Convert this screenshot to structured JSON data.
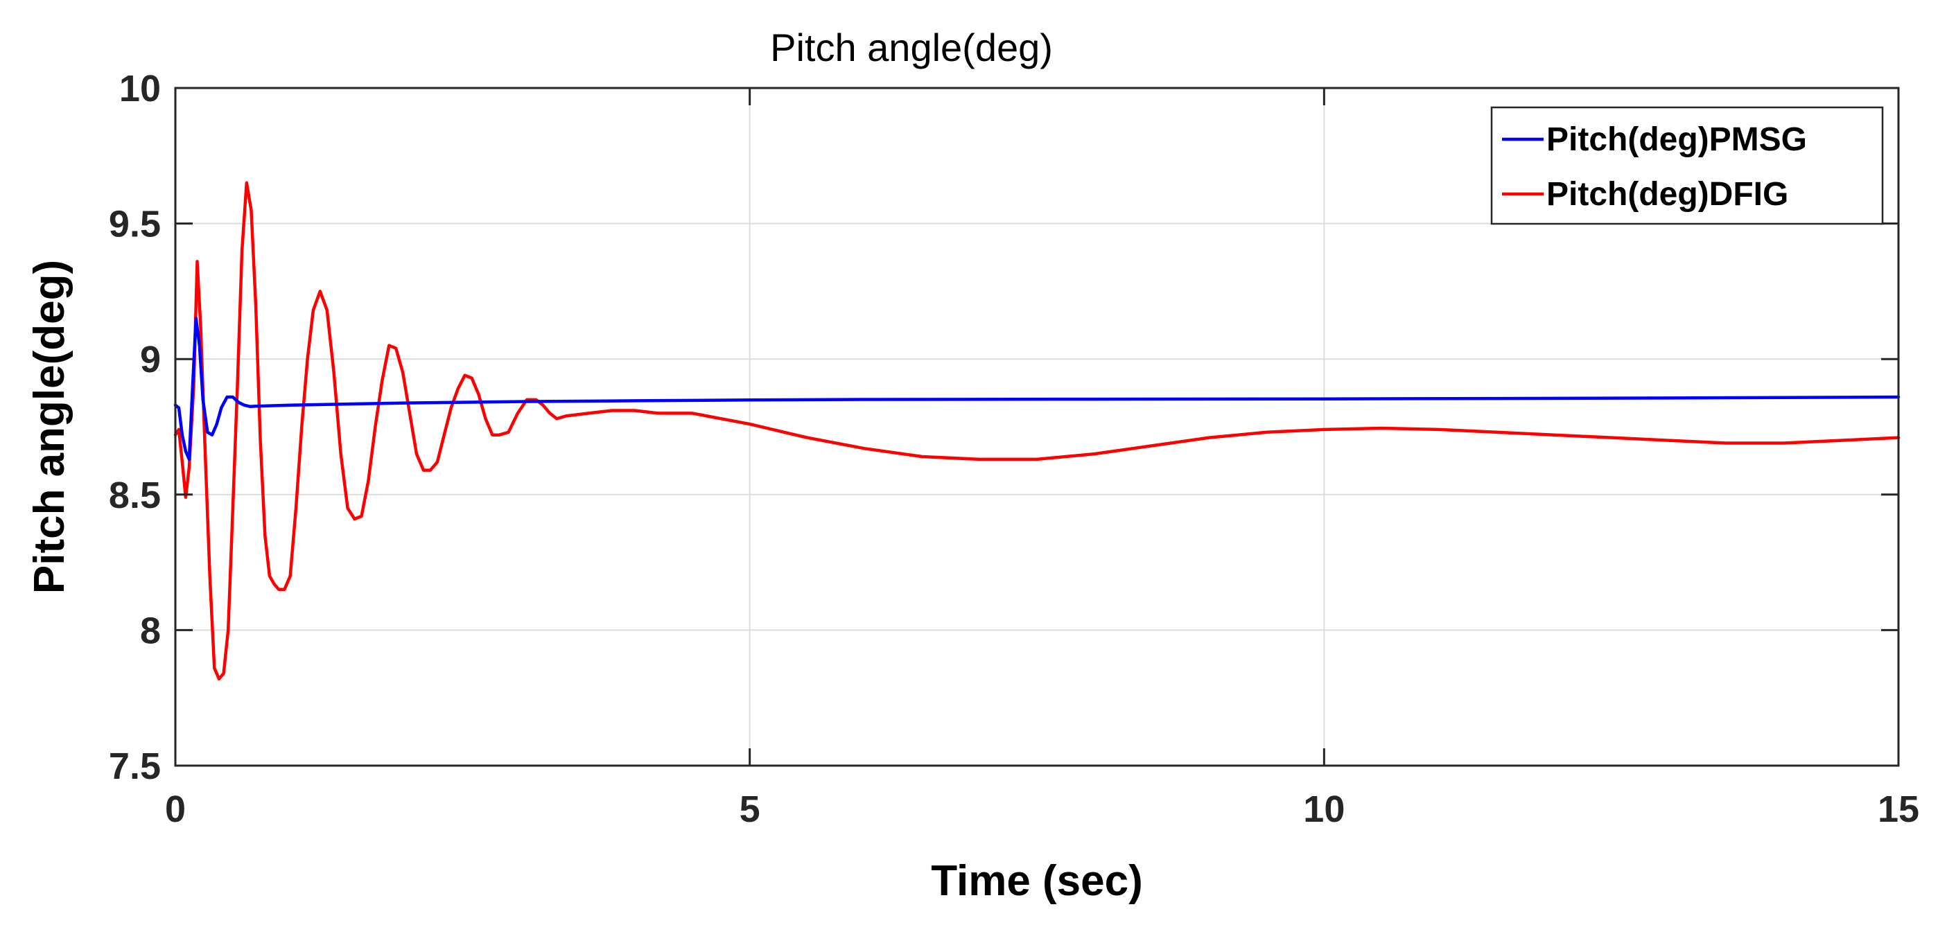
{
  "chart_data": {
    "type": "line",
    "title": "Pitch angle(deg)",
    "xlabel": "Time (sec)",
    "ylabel": "Pitch angle(deg)",
    "xlim": [
      0,
      15
    ],
    "ylim": [
      7.5,
      10
    ],
    "xticks": [
      0,
      5,
      10,
      15
    ],
    "xtick_labels": [
      "0",
      "5",
      "10",
      "15"
    ],
    "yticks": [
      7.5,
      8,
      8.5,
      9,
      9.5,
      10
    ],
    "ytick_labels": [
      "7.5",
      "8",
      "8.5",
      "9",
      "9.5",
      "10"
    ],
    "grid": true,
    "legend_position": "top-right",
    "series": [
      {
        "name": "Pitch(deg)PMSG",
        "color": "#0000ff",
        "x": [
          0,
          0.03,
          0.06,
          0.09,
          0.12,
          0.15,
          0.18,
          0.21,
          0.24,
          0.28,
          0.32,
          0.36,
          0.4,
          0.45,
          0.5,
          0.55,
          0.6,
          0.65,
          0.7,
          1.0,
          2.0,
          3.0,
          4.0,
          5.0,
          6.0,
          8.0,
          10.0,
          12.0,
          14.0,
          15.0
        ],
        "y": [
          8.83,
          8.82,
          8.72,
          8.66,
          8.63,
          8.9,
          9.15,
          9.05,
          8.85,
          8.73,
          8.72,
          8.76,
          8.82,
          8.86,
          8.86,
          8.84,
          8.83,
          8.825,
          8.826,
          8.83,
          8.838,
          8.843,
          8.846,
          8.849,
          8.851,
          8.852,
          8.853,
          8.855,
          8.858,
          8.86
        ]
      },
      {
        "name": "Pitch(deg)DFIG",
        "color": "#ff0000",
        "x": [
          0,
          0.03,
          0.06,
          0.09,
          0.12,
          0.16,
          0.19,
          0.22,
          0.26,
          0.3,
          0.34,
          0.38,
          0.42,
          0.46,
          0.5,
          0.54,
          0.58,
          0.62,
          0.66,
          0.7,
          0.74,
          0.78,
          0.82,
          0.86,
          0.9,
          0.95,
          1.0,
          1.05,
          1.1,
          1.15,
          1.2,
          1.26,
          1.32,
          1.38,
          1.44,
          1.5,
          1.56,
          1.62,
          1.68,
          1.74,
          1.8,
          1.86,
          1.92,
          1.98,
          2.04,
          2.1,
          2.16,
          2.22,
          2.28,
          2.34,
          2.4,
          2.46,
          2.52,
          2.58,
          2.64,
          2.7,
          2.76,
          2.82,
          2.9,
          2.98,
          3.06,
          3.14,
          3.2,
          3.26,
          3.32,
          3.4,
          3.6,
          3.8,
          4.0,
          4.2,
          4.5,
          5.0,
          5.5,
          6.0,
          6.5,
          7.0,
          7.5,
          8.0,
          8.5,
          9.0,
          9.5,
          10.0,
          10.5,
          11.0,
          11.5,
          12.0,
          12.5,
          13.0,
          13.5,
          14.0,
          14.5,
          15.0
        ],
        "y": [
          8.72,
          8.74,
          8.62,
          8.49,
          8.6,
          8.9,
          9.36,
          9.12,
          8.65,
          8.2,
          7.86,
          7.82,
          7.84,
          8.0,
          8.45,
          8.9,
          9.4,
          9.65,
          9.55,
          9.2,
          8.7,
          8.35,
          8.2,
          8.17,
          8.15,
          8.15,
          8.2,
          8.45,
          8.75,
          9.0,
          9.18,
          9.25,
          9.18,
          8.95,
          8.65,
          8.45,
          8.41,
          8.42,
          8.55,
          8.75,
          8.92,
          9.05,
          9.04,
          8.95,
          8.8,
          8.65,
          8.59,
          8.59,
          8.62,
          8.72,
          8.82,
          8.89,
          8.94,
          8.93,
          8.87,
          8.78,
          8.72,
          8.72,
          8.73,
          8.8,
          8.85,
          8.85,
          8.83,
          8.8,
          8.78,
          8.79,
          8.8,
          8.81,
          8.81,
          8.8,
          8.8,
          8.76,
          8.71,
          8.67,
          8.64,
          8.63,
          8.63,
          8.65,
          8.68,
          8.71,
          8.73,
          8.74,
          8.745,
          8.74,
          8.73,
          8.72,
          8.71,
          8.7,
          8.69,
          8.69,
          8.7,
          8.71
        ]
      }
    ]
  },
  "colors": {
    "axis": "#262626",
    "grid": "#dcdcdc",
    "background": "#ffffff"
  }
}
